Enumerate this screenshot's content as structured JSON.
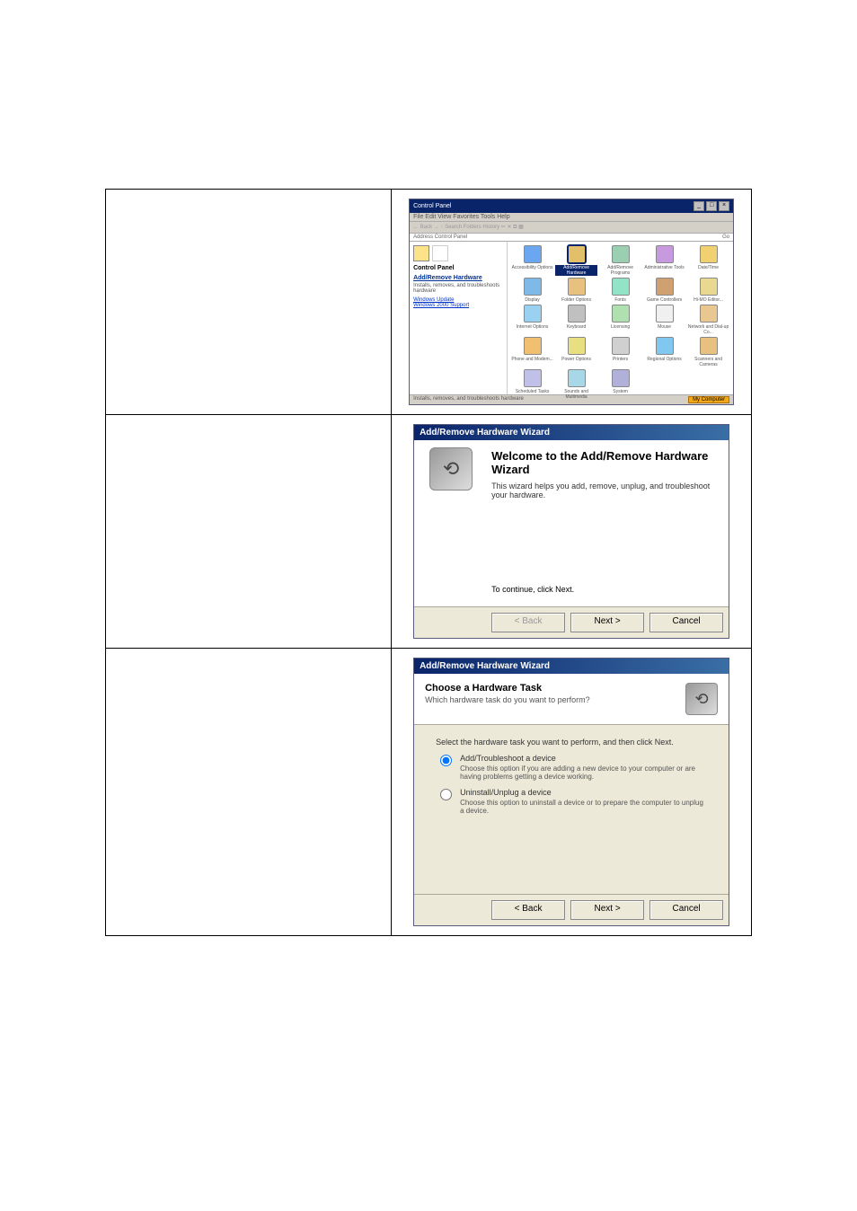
{
  "row1": {
    "control_panel": {
      "title": "Control Panel",
      "menu": "File  Edit  View  Favorites  Tools  Help",
      "toolbar": "← Back  →  ↑   Search   Folders   History   ✂  ✕  ⧉  ▦",
      "addressLabel": "Address",
      "addressValue": "Control Panel",
      "goLabel": "Go",
      "sideTitle": "Control Panel",
      "sideSelectedName": "Add/Remove Hardware",
      "sideSelectedDesc": "Installs, removes, and troubleshoots hardware",
      "sideLink1": "Windows Update",
      "sideLink2": "Windows 2000 Support",
      "icons": [
        {
          "label": "Accessibility Options",
          "color": "#6aa7f0"
        },
        {
          "label": "Add/Remove Hardware",
          "color": "#e2c069",
          "selected": true
        },
        {
          "label": "Add/Remove Programs",
          "color": "#9acfb1"
        },
        {
          "label": "Administrative Tools",
          "color": "#c79adf"
        },
        {
          "label": "Date/Time",
          "color": "#f0d070"
        },
        {
          "label": "Display",
          "color": "#7fb9e8"
        },
        {
          "label": "Folder Options",
          "color": "#e8c17f"
        },
        {
          "label": "Fonts",
          "color": "#93e3c7"
        },
        {
          "label": "Game Controllers",
          "color": "#cfa070"
        },
        {
          "label": "Hi-MO Editor...",
          "color": "#e8d890"
        },
        {
          "label": "Internet Options",
          "color": "#9ad0f0"
        },
        {
          "label": "Keyboard",
          "color": "#c0c0c0"
        },
        {
          "label": "Licensing",
          "color": "#b0e0b0"
        },
        {
          "label": "Mouse",
          "color": "#f0f0f0"
        },
        {
          "label": "Network and Dial-up Co...",
          "color": "#e8c890"
        },
        {
          "label": "Phone and Modem...",
          "color": "#f0c070"
        },
        {
          "label": "Power Options",
          "color": "#e8e080"
        },
        {
          "label": "Printers",
          "color": "#d0d0d0"
        },
        {
          "label": "Regional Options",
          "color": "#80c8f0"
        },
        {
          "label": "Scanners and Cameras",
          "color": "#e8c080"
        },
        {
          "label": "Scheduled Tasks",
          "color": "#c0c0e8"
        },
        {
          "label": "Sounds and Multimedia",
          "color": "#a8d8e8"
        },
        {
          "label": "System",
          "color": "#b0b0d8"
        }
      ],
      "statusLeft": "Installs, removes, and troubleshoots hardware",
      "statusRight": "My Computer"
    }
  },
  "row2": {
    "wizard": {
      "title": "Add/Remove Hardware Wizard",
      "heading": "Welcome to the Add/Remove Hardware Wizard",
      "desc": "This wizard helps you add, remove, unplug, and troubleshoot your hardware.",
      "cont": "To continue, click Next.",
      "backLabel": "< Back",
      "nextLabel": "Next >",
      "cancelLabel": "Cancel"
    }
  },
  "row3": {
    "wizard": {
      "title": "Add/Remove Hardware Wizard",
      "heading": "Choose a Hardware Task",
      "sub": "Which hardware task do you want to perform?",
      "prompt": "Select the hardware task you want to perform, and then click Next.",
      "opt1Label": "Add/Troubleshoot a device",
      "opt1Desc": "Choose this option if you are adding a new device to your computer or are having problems getting a device working.",
      "opt2Label": "Uninstall/Unplug a device",
      "opt2Desc": "Choose this option to uninstall a device or to prepare the computer to unplug a device.",
      "backLabel": "< Back",
      "nextLabel": "Next >",
      "cancelLabel": "Cancel"
    }
  }
}
